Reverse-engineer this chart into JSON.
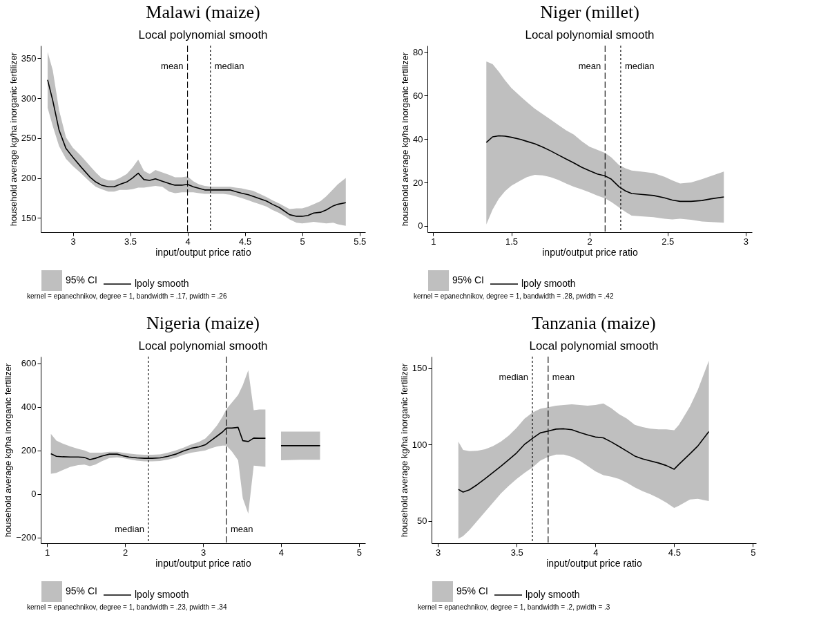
{
  "chart_data": [
    {
      "type": "line",
      "title": "Malawi (maize)",
      "subtitle": "Local polynomial smooth",
      "xlabel": "input/output price ratio",
      "ylabel": "household average kg/ha inorganic fertilizer",
      "annotations": [
        "95% CI",
        "kernel = epanechnikov, degree = 1, bandwidth = .17, pwidth = .26"
      ],
      "legend": "bottom",
      "grid": false,
      "marker": "none",
      "x": [
        2.78,
        2.825,
        2.88,
        2.94,
        3.0,
        3.07,
        3.15,
        3.2,
        3.25,
        3.31,
        3.36,
        3.41,
        3.47,
        3.52,
        3.57,
        3.62,
        3.67,
        3.72,
        3.78,
        3.84,
        3.89,
        3.95,
        4.0,
        4.05,
        4.1,
        4.15,
        4.21,
        4.26,
        4.31,
        4.37,
        4.42,
        4.47,
        4.53,
        4.57,
        4.63,
        4.69,
        4.74,
        4.8,
        4.85,
        4.89,
        4.95,
        5.0,
        5.05,
        5.1,
        5.16,
        5.21,
        5.27,
        5.31,
        5.38
      ],
      "series": [
        {
          "name": "lpoly smooth",
          "color": "#000000",
          "line_style": "solid",
          "values": [
            323,
            297,
            260,
            237,
            226,
            214,
            201,
            195,
            191,
            189,
            189,
            192,
            195,
            200,
            206,
            198,
            197,
            199,
            196,
            193,
            191,
            191,
            192,
            189,
            187,
            185,
            185,
            185,
            185,
            185,
            183,
            181,
            179,
            177,
            174,
            171,
            167,
            163,
            158,
            154,
            152,
            152,
            153,
            156,
            157,
            160,
            165,
            167,
            169
          ],
          "lower": [
            288,
            265,
            240,
            224,
            215,
            206,
            195,
            189,
            186,
            183,
            183,
            185,
            185,
            186,
            188,
            188,
            189,
            190,
            189,
            183,
            181,
            182,
            182,
            182,
            181,
            180,
            180,
            180,
            180,
            179,
            177,
            175,
            172,
            170,
            167,
            164,
            160,
            156,
            152,
            148,
            144,
            143,
            144,
            145,
            144,
            143,
            144,
            142,
            140
          ],
          "upper": [
            358,
            335,
            285,
            251,
            238,
            228,
            215,
            207,
            200,
            197,
            197,
            200,
            205,
            213,
            223,
            209,
            205,
            210,
            207,
            204,
            201,
            201,
            202,
            196,
            192,
            190,
            189,
            189,
            189,
            189,
            188,
            187,
            185,
            184,
            180,
            176,
            172,
            168,
            164,
            161,
            162,
            162,
            164,
            167,
            171,
            177,
            186,
            192,
            200
          ]
        }
      ],
      "ref_lines": [
        {
          "axis": "x",
          "value": 4.0,
          "label": "mean",
          "line_style": "dashed",
          "color": "#000000"
        },
        {
          "axis": "x",
          "value": 4.2,
          "label": "median",
          "line_style": "dotted",
          "color": "#000000"
        }
      ],
      "xlim": [
        2.72,
        5.55
      ],
      "xticks": [
        3,
        3.5,
        4,
        4.5,
        5,
        5.5
      ],
      "ylim": [
        132,
        366
      ],
      "yticks": [
        150,
        200,
        250,
        300,
        350
      ]
    },
    {
      "type": "line",
      "title": "Niger (millet)",
      "subtitle": "Local polynomial smooth",
      "xlabel": "input/output price ratio",
      "ylabel": "household average kg/ha inorganic fertilizer",
      "annotations": [
        "95% CI",
        "kernel = epanechnikov, degree = 1, bandwidth = .28, pwidth = .42"
      ],
      "legend": "bottom",
      "grid": false,
      "marker": "none",
      "x": [
        1.34,
        1.38,
        1.42,
        1.46,
        1.5,
        1.56,
        1.6,
        1.65,
        1.7,
        1.75,
        1.8,
        1.85,
        1.9,
        1.95,
        2.0,
        2.05,
        2.1,
        2.14,
        2.19,
        2.23,
        2.27,
        2.33,
        2.41,
        2.48,
        2.53,
        2.58,
        2.65,
        2.72,
        2.78,
        2.86
      ],
      "series": [
        {
          "name": "lpoly smooth",
          "color": "#000000",
          "line_style": "solid",
          "values": [
            38.4,
            41,
            41.5,
            41.3,
            40.8,
            39.8,
            38.9,
            37.8,
            36.3,
            34.6,
            32.7,
            30.8,
            29,
            27,
            25.4,
            23.9,
            23,
            21.5,
            18,
            16.1,
            14.9,
            14.5,
            14,
            12.9,
            11.9,
            11.3,
            11.3,
            11.7,
            12.5,
            13.3
          ],
          "lower": [
            0.7,
            7.5,
            12.5,
            16,
            18.5,
            21,
            22.5,
            23.5,
            23.3,
            22.5,
            21.2,
            19.5,
            18,
            16.8,
            15.5,
            14,
            12.7,
            11,
            8.5,
            6.5,
            4.7,
            4.4,
            4,
            3.3,
            3,
            3.3,
            2.8,
            2,
            1.8,
            1.5
          ],
          "upper": [
            75.7,
            74.5,
            71,
            67,
            63.5,
            59.5,
            57,
            54,
            51.5,
            49,
            46.5,
            44,
            42,
            39,
            36.5,
            35,
            33.6,
            31.5,
            28,
            26.5,
            25.5,
            25,
            24.3,
            22.6,
            21,
            19.5,
            20,
            21.5,
            23,
            25
          ]
        }
      ],
      "ref_lines": [
        {
          "axis": "x",
          "value": 2.1,
          "label": "mean",
          "line_style": "dashed",
          "color": "#000000"
        },
        {
          "axis": "x",
          "value": 2.2,
          "label": "median",
          "line_style": "dotted",
          "color": "#000000"
        }
      ],
      "xlim": [
        0.963,
        3.04
      ],
      "xticks": [
        1,
        1.5,
        2,
        2.5,
        3
      ],
      "ylim": [
        -2.9,
        83
      ],
      "yticks": [
        0,
        20,
        40,
        60,
        80
      ]
    },
    {
      "type": "line",
      "title": "Nigeria (maize)",
      "subtitle": "Local polynomial smooth",
      "xlabel": "input/output price ratio",
      "ylabel": "household average kg/ha inorganic fertilizer",
      "annotations": [
        "95% CI",
        "kernel = epanechnikov, degree = 1, bandwidth = .23, pwidth = .34"
      ],
      "legend": "bottom",
      "grid": false,
      "marker": "none",
      "x": [
        1.05,
        1.12,
        1.2,
        1.3,
        1.4,
        1.48,
        1.55,
        1.62,
        1.7,
        1.8,
        1.9,
        1.97,
        2.05,
        2.15,
        2.25,
        2.35,
        2.45,
        2.55,
        2.65,
        2.75,
        2.85,
        2.95,
        3.03,
        3.1,
        3.18,
        3.25,
        3.3,
        3.37,
        3.45,
        3.51,
        3.58,
        3.65,
        3.72,
        3.8,
        3.9,
        4.0,
        4.25,
        4.5
      ],
      "series": [
        {
          "name": "lpoly smooth",
          "color": "#000000",
          "line_style": "solid",
          "values": [
            185,
            173,
            171,
            170,
            170,
            168,
            158,
            164,
            174,
            183,
            183,
            176,
            170,
            166,
            164,
            164,
            166,
            173,
            183,
            198,
            210,
            217,
            226,
            245,
            266,
            285,
            303,
            303,
            306,
            245,
            241,
            257,
            256,
            256,
            null,
            222,
            222,
            222
          ],
          "lower": [
            93,
            97,
            110,
            125,
            133,
            135,
            128,
            135,
            150,
            165,
            168,
            165,
            160,
            153,
            150,
            150,
            152,
            158,
            167,
            180,
            190,
            195,
            200,
            210,
            218,
            222,
            222,
            195,
            155,
            -20,
            -90,
            130,
            128,
            125,
            null,
            155,
            157,
            157
          ],
          "upper": [
            276,
            245,
            232,
            218,
            207,
            200,
            190,
            190,
            190,
            194,
            194,
            190,
            186,
            182,
            180,
            180,
            182,
            190,
            200,
            213,
            228,
            240,
            255,
            280,
            315,
            355,
            390,
            420,
            455,
            500,
            568,
            385,
            388,
            388,
            null,
            287,
            287,
            287
          ]
        }
      ],
      "ref_lines": [
        {
          "axis": "x",
          "value": 2.3,
          "label": "median",
          "line_style": "dotted",
          "color": "#000000"
        },
        {
          "axis": "x",
          "value": 3.3,
          "label": "mean",
          "line_style": "dashed",
          "color": "#000000"
        }
      ],
      "xlim": [
        0.92,
        5.08
      ],
      "xticks": [
        1,
        2,
        3,
        4,
        5
      ],
      "ylim": [
        -226,
        631
      ],
      "yticks": [
        -200,
        0,
        200,
        400,
        600
      ]
    },
    {
      "type": "line",
      "title": "Tanzania (maize)",
      "subtitle": "Local polynomial smooth",
      "xlabel": "input/output price ratio",
      "ylabel": "household average kg/ha inorganic fertilizer",
      "annotations": [
        "95% CI",
        "kernel = epanechnikov, degree = 1, bandwidth = .2, pwidth = .3"
      ],
      "legend": "bottom",
      "grid": false,
      "marker": "none",
      "x": [
        3.13,
        3.16,
        3.2,
        3.25,
        3.3,
        3.35,
        3.4,
        3.45,
        3.5,
        3.55,
        3.6,
        3.65,
        3.7,
        3.75,
        3.8,
        3.85,
        3.9,
        3.95,
        4.0,
        4.05,
        4.1,
        4.15,
        4.2,
        4.25,
        4.3,
        4.35,
        4.4,
        4.45,
        4.5,
        4.53,
        4.6,
        4.65,
        4.72
      ],
      "series": [
        {
          "name": "lpoly smooth",
          "color": "#000000",
          "line_style": "solid",
          "values": [
            70.7,
            68.9,
            70.4,
            73.8,
            77.7,
            81.8,
            85.9,
            90.2,
            94.6,
            100.2,
            104.1,
            107.7,
            108.9,
            110.2,
            110.4,
            109.8,
            108,
            106.4,
            105,
            104.5,
            101.8,
            98.8,
            95.7,
            92.5,
            90.7,
            89.3,
            88,
            86.3,
            83.9,
            87.1,
            94,
            99.1,
            108.6
          ],
          "lower": [
            38.4,
            40,
            44,
            50,
            56,
            62,
            68,
            73,
            77.5,
            81.5,
            85,
            89.5,
            92,
            93.5,
            93.5,
            92,
            89.5,
            86,
            82.5,
            80,
            79,
            77.5,
            75,
            72,
            69.5,
            67.5,
            65,
            62,
            58.5,
            60,
            64,
            64.5,
            63
          ],
          "upper": [
            102,
            96.5,
            95.8,
            96,
            97,
            99,
            102,
            106,
            111,
            117,
            121,
            123.5,
            124.5,
            125.5,
            126,
            126.5,
            126,
            125.5,
            126,
            127,
            124,
            120,
            117,
            113,
            111.5,
            110.5,
            110,
            110,
            109.5,
            113,
            125,
            136,
            155
          ]
        }
      ],
      "ref_lines": [
        {
          "axis": "x",
          "value": 3.6,
          "label": "median",
          "line_style": "dotted",
          "color": "#000000"
        },
        {
          "axis": "x",
          "value": 3.7,
          "label": "mean",
          "line_style": "dashed",
          "color": "#000000"
        }
      ],
      "xlim": [
        2.96,
        5.02
      ],
      "xticks": [
        3,
        3.5,
        4,
        4.5,
        5
      ],
      "ylim": [
        35.4,
        157.7
      ],
      "yticks": [
        50,
        100,
        150
      ]
    }
  ]
}
